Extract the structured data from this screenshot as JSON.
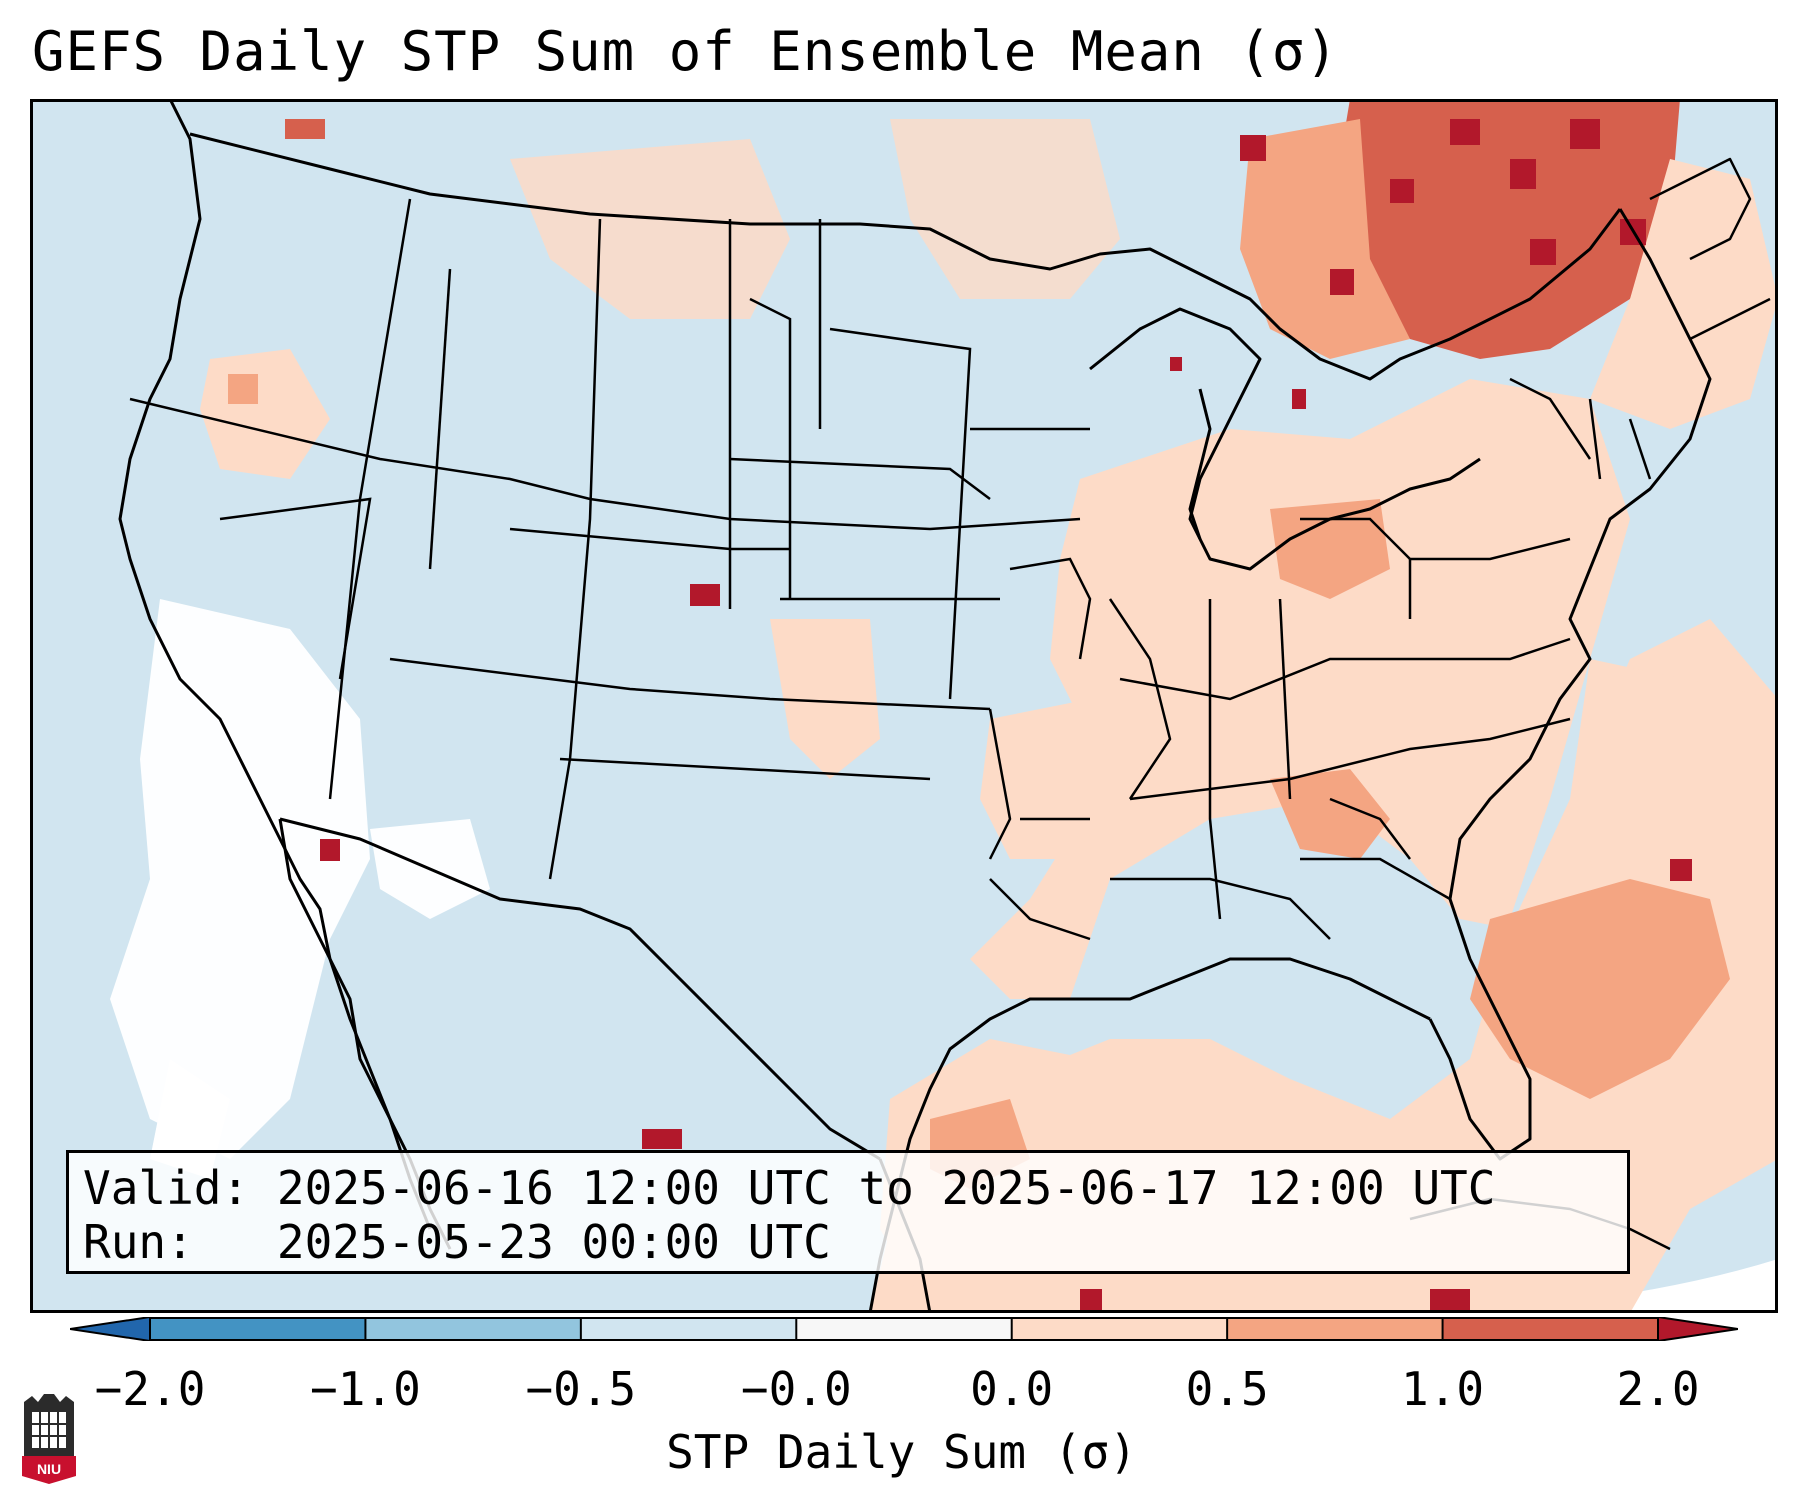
{
  "title": "GEFS Daily STP Sum of Ensemble Mean (σ)",
  "info": {
    "valid_label": "Valid:",
    "valid_value": "2025-06-16 12:00 UTC to 2025-06-17 12:00 UTC",
    "run_label": "Run:",
    "run_value": "2025-05-23 00:00 UTC"
  },
  "colorbar": {
    "label": "STP Daily Sum (σ)",
    "ticks": [
      "−2.0",
      "−1.0",
      "−0.5",
      "−0.0",
      "0.0",
      "0.5",
      "1.0",
      "2.0"
    ],
    "bins": [
      {
        "range": "-2.0 to -1.0",
        "color": "#4393c3"
      },
      {
        "range": "-1.0 to -0.5",
        "color": "#92c5de"
      },
      {
        "range": "-0.5 to -0.0",
        "color": "#d1e5f0"
      },
      {
        "range": "-0.0 to 0.0",
        "color": "#f7f7f7"
      },
      {
        "range": "0.0 to 0.5",
        "color": "#fddbc7"
      },
      {
        "range": "0.5 to 1.0",
        "color": "#f4a582"
      },
      {
        "range": "1.0 to 2.0",
        "color": "#d6604d"
      }
    ],
    "under_color": "#2166ac",
    "over_color": "#b2182b"
  },
  "map_colors": {
    "background": "#d1e5f0",
    "neutral": "#ffffff",
    "low_positive": "#fddbc7",
    "mid_positive": "#f4a582",
    "high_positive": "#d6604d",
    "extreme_positive": "#b2182b",
    "low_negative": "#92c5de",
    "border": "#000000"
  },
  "logo_text": "NIU"
}
